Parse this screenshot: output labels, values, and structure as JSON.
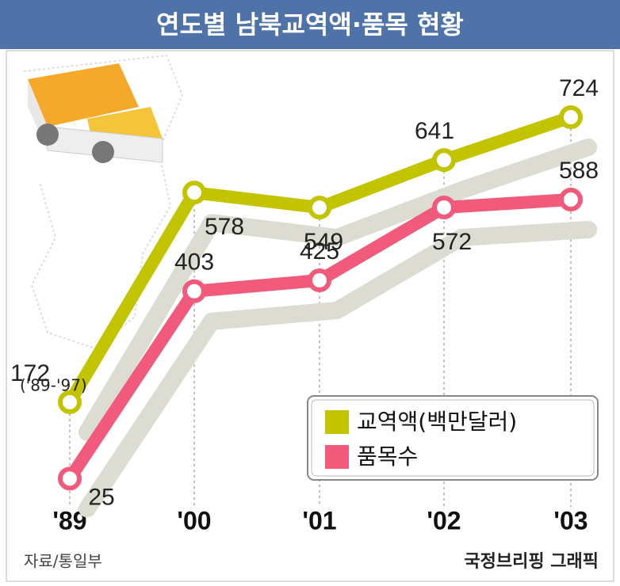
{
  "chart_data": {
    "type": "line",
    "title": "연도별 남북교역액·품목 현황",
    "categories": [
      "'89",
      "'00",
      "'01",
      "'02",
      "'03"
    ],
    "annotation": "('89-'97)",
    "series": [
      {
        "name": "교역액(백만달러)",
        "color": "#c2c400",
        "values": [
          172,
          578,
          549,
          641,
          724
        ]
      },
      {
        "name": "품목수",
        "color": "#f25a7c",
        "values": [
          25,
          403,
          425,
          572,
          588
        ]
      }
    ],
    "source": "자료/통일부",
    "credit": "국정브리핑 그래픽"
  }
}
